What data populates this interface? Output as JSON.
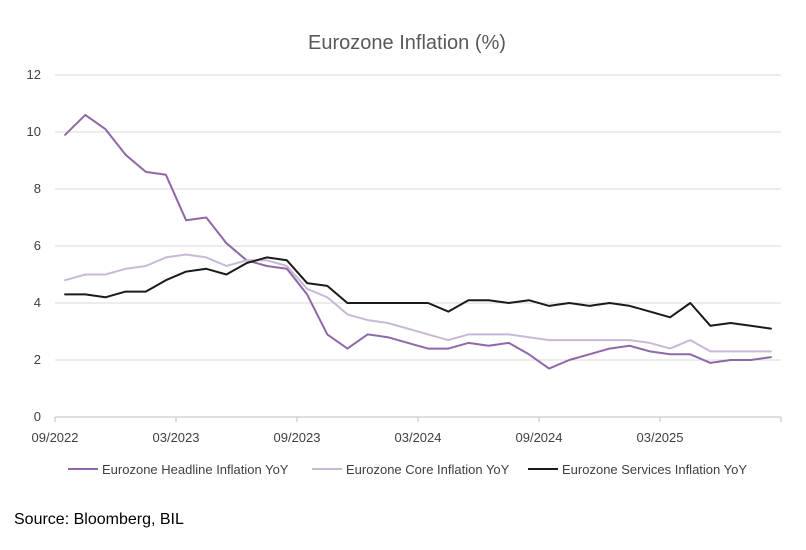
{
  "chart_data": {
    "type": "line",
    "title": "Eurozone Inflation (%)",
    "xlabel": "",
    "ylabel": "",
    "ylim": [
      0,
      12
    ],
    "yticks": [
      0,
      2,
      4,
      6,
      8,
      10,
      12
    ],
    "xtick_labels": [
      "09/2022",
      "03/2023",
      "09/2023",
      "03/2024",
      "09/2024",
      "03/2025"
    ],
    "x": [
      "09/2022",
      "10/2022",
      "11/2022",
      "12/2022",
      "01/2023",
      "02/2023",
      "03/2023",
      "04/2023",
      "05/2023",
      "06/2023",
      "07/2023",
      "08/2023",
      "09/2023",
      "10/2023",
      "11/2023",
      "12/2023",
      "01/2024",
      "02/2024",
      "03/2024",
      "04/2024",
      "05/2024",
      "06/2024",
      "07/2024",
      "08/2024",
      "09/2024",
      "10/2024",
      "11/2024",
      "12/2024",
      "01/2025",
      "02/2025",
      "03/2025",
      "04/2025",
      "05/2025",
      "06/2025",
      "07/2025",
      "08/2025"
    ],
    "grid": true,
    "legend_position": "bottom",
    "series": [
      {
        "name": "Eurozone Headline Inflation YoY",
        "color": "#8E68A8",
        "values": [
          9.9,
          10.6,
          10.1,
          9.2,
          8.6,
          8.5,
          6.9,
          7.0,
          6.1,
          5.5,
          5.3,
          5.2,
          4.3,
          2.9,
          2.4,
          2.9,
          2.8,
          2.6,
          2.4,
          2.4,
          2.6,
          2.5,
          2.6,
          2.2,
          1.7,
          2.0,
          2.2,
          2.4,
          2.5,
          2.3,
          2.2,
          2.2,
          1.9,
          2.0,
          2.0,
          2.1
        ]
      },
      {
        "name": "Eurozone Core Inflation YoY",
        "color": "#C9B8D8",
        "values": [
          4.8,
          5.0,
          5.0,
          5.2,
          5.3,
          5.6,
          5.7,
          5.6,
          5.3,
          5.5,
          5.5,
          5.3,
          4.5,
          4.2,
          3.6,
          3.4,
          3.3,
          3.1,
          2.9,
          2.7,
          2.9,
          2.9,
          2.9,
          2.8,
          2.7,
          2.7,
          2.7,
          2.7,
          2.7,
          2.6,
          2.4,
          2.7,
          2.3,
          2.3,
          2.3,
          2.3
        ]
      },
      {
        "name": "Eurozone Services Inflation YoY",
        "color": "#1A1A1A",
        "values": [
          4.3,
          4.3,
          4.2,
          4.4,
          4.4,
          4.8,
          5.1,
          5.2,
          5.0,
          5.4,
          5.6,
          5.5,
          4.7,
          4.6,
          4.0,
          4.0,
          4.0,
          4.0,
          4.0,
          3.7,
          4.1,
          4.1,
          4.0,
          4.1,
          3.9,
          4.0,
          3.9,
          4.0,
          3.9,
          3.7,
          3.5,
          4.0,
          3.2,
          3.3,
          3.2,
          3.1
        ]
      }
    ]
  },
  "footer": {
    "source": "Source: Bloomberg, BIL"
  }
}
